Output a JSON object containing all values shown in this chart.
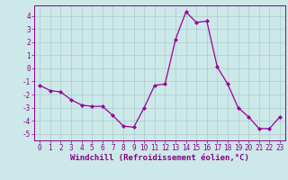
{
  "x": [
    0,
    1,
    2,
    3,
    4,
    5,
    6,
    7,
    8,
    9,
    10,
    11,
    12,
    13,
    14,
    15,
    16,
    17,
    18,
    19,
    20,
    21,
    22,
    23
  ],
  "y": [
    -1.3,
    -1.7,
    -1.8,
    -2.4,
    -2.8,
    -2.9,
    -2.9,
    -3.6,
    -4.4,
    -4.5,
    -3.0,
    -1.3,
    -1.2,
    2.2,
    4.3,
    3.5,
    3.6,
    0.1,
    -1.2,
    -3.0,
    -3.7,
    -4.6,
    -4.6,
    -3.7
  ],
  "line_color": "#990099",
  "marker": "D",
  "marker_size": 2.0,
  "bg_color": "#cce8e8",
  "grid_color": "#aacccc",
  "xlabel": "Windchill (Refroidissement éolien,°C)",
  "xlabel_color": "#880088",
  "tick_color": "#880088",
  "axis_color": "#880088",
  "ylim": [
    -5.5,
    4.8
  ],
  "xlim": [
    -0.5,
    23.5
  ],
  "yticks": [
    -5,
    -4,
    -3,
    -2,
    -1,
    0,
    1,
    2,
    3,
    4
  ],
  "xticks": [
    0,
    1,
    2,
    3,
    4,
    5,
    6,
    7,
    8,
    9,
    10,
    11,
    12,
    13,
    14,
    15,
    16,
    17,
    18,
    19,
    20,
    21,
    22,
    23
  ],
  "tick_fontsize": 5.5,
  "xlabel_fontsize": 6.5
}
